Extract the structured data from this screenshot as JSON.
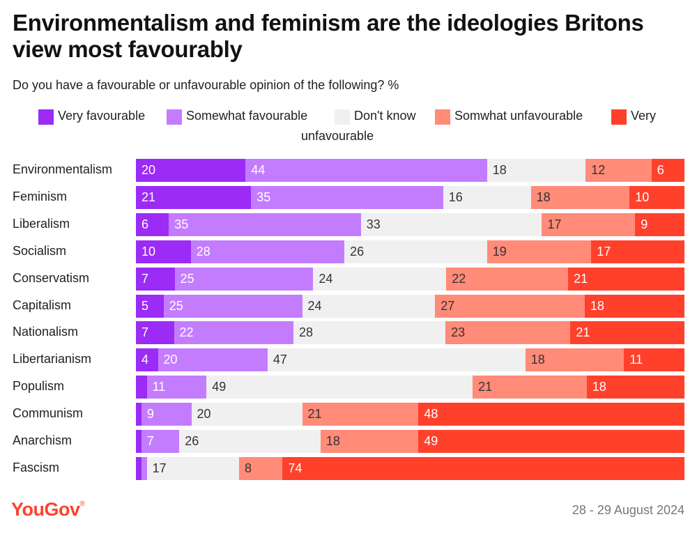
{
  "title": "Environmentalism and feminism are the ideologies Britons view most favourably",
  "subtitle": "Do you have a favourable or unfavourable opinion of the following? %",
  "footer": {
    "logo": "YouGov",
    "date": "28 - 29 August 2024"
  },
  "colors": {
    "very_favourable": "#9b2bf5",
    "somewhat_favourable": "#c47cff",
    "dont_know": "#f0f0f0",
    "somewhat_unfavourable": "#ff8b78",
    "very_unfavourable": "#ff412c",
    "logo": "#ff412c"
  },
  "legend": [
    {
      "key": "very_favourable",
      "label": "Very favourable"
    },
    {
      "key": "somewhat_favourable",
      "label": "Somewhat favourable"
    },
    {
      "key": "dont_know",
      "label": "Don't know"
    },
    {
      "key": "somewhat_unfavourable",
      "label": "Somwhat unfavourable"
    },
    {
      "key": "very_unfavourable",
      "label": "Very",
      "label_continued": "unfavourable"
    }
  ],
  "chart_data": {
    "type": "bar",
    "orientation": "horizontal",
    "stacked": true,
    "title": "Environmentalism and feminism are the ideologies Britons view most favourably",
    "subtitle": "Do you have a favourable or unfavourable opinion of the following? %",
    "categories": [
      "Environmentalism",
      "Feminism",
      "Liberalism",
      "Socialism",
      "Conservatism",
      "Capitalism",
      "Nationalism",
      "Libertarianism",
      "Populism",
      "Communism",
      "Anarchism",
      "Fascism"
    ],
    "series": [
      {
        "name": "Very favourable",
        "key": "very_favourable",
        "values": [
          20,
          21,
          6,
          10,
          7,
          5,
          7,
          4,
          2,
          1,
          1,
          1
        ],
        "labels": [
          "20",
          "21",
          "6",
          "10",
          "7",
          "5",
          "7",
          "4",
          "",
          "",
          "",
          ""
        ]
      },
      {
        "name": "Somewhat favourable",
        "key": "somewhat_favourable",
        "values": [
          44,
          35,
          35,
          28,
          25,
          25,
          22,
          20,
          11,
          9,
          7,
          1
        ],
        "labels": [
          "44",
          "35",
          "35",
          "28",
          "25",
          "25",
          "22",
          "20",
          "11",
          "9",
          "7",
          ""
        ]
      },
      {
        "name": "Don't know",
        "key": "dont_know",
        "values": [
          18,
          16,
          33,
          26,
          24,
          24,
          28,
          47,
          49,
          20,
          26,
          17
        ],
        "labels": [
          "18",
          "16",
          "33",
          "26",
          "24",
          "24",
          "28",
          "47",
          "49",
          "20",
          "26",
          "17"
        ]
      },
      {
        "name": "Somwhat unfavourable",
        "key": "somewhat_unfavourable",
        "values": [
          12,
          18,
          17,
          19,
          22,
          27,
          23,
          18,
          21,
          21,
          18,
          8
        ],
        "labels": [
          "12",
          "18",
          "17",
          "19",
          "22",
          "27",
          "23",
          "18",
          "21",
          "21",
          "18",
          "8"
        ]
      },
      {
        "name": "Very unfavourable",
        "key": "very_unfavourable",
        "values": [
          6,
          10,
          9,
          17,
          21,
          18,
          21,
          11,
          18,
          48,
          49,
          74
        ],
        "labels": [
          "6",
          "10",
          "9",
          "17",
          "21",
          "18",
          "21",
          "11",
          "18",
          "48",
          "49",
          "74"
        ]
      }
    ],
    "xlim": [
      0,
      100
    ],
    "grid": false,
    "legend_position": "top"
  }
}
